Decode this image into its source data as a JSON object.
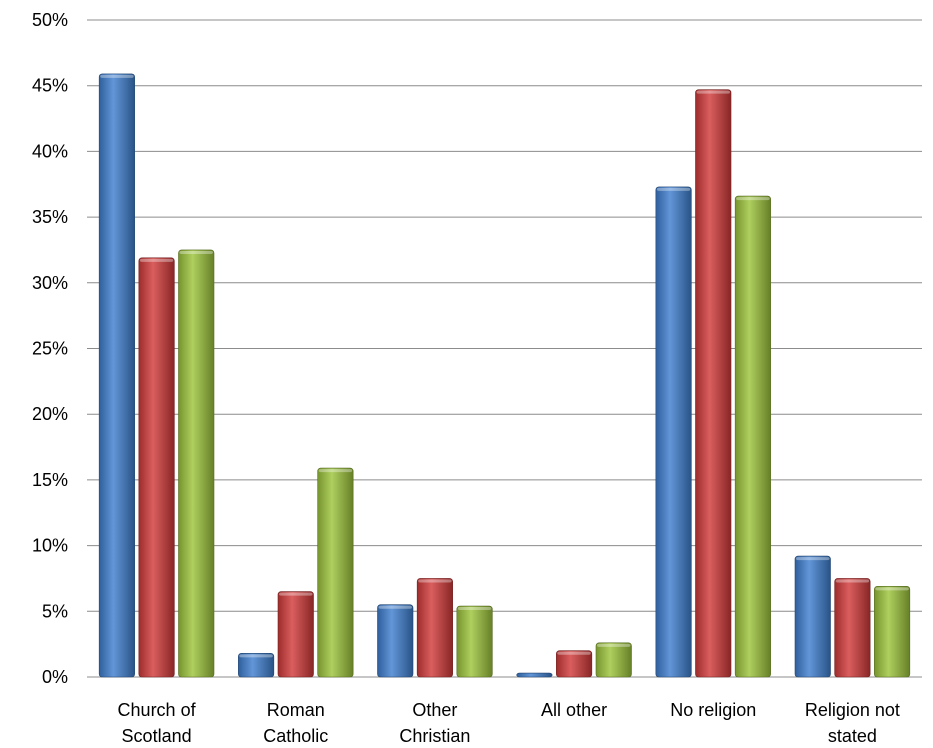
{
  "chart_data": {
    "type": "bar",
    "categories": [
      [
        "Church of",
        "Scotland"
      ],
      [
        "Roman",
        "Catholic"
      ],
      [
        "Other",
        "Christian"
      ],
      [
        "All other"
      ],
      [
        "No religion"
      ],
      [
        "Religion not",
        "stated"
      ]
    ],
    "series": [
      {
        "color": "#3f7fd0",
        "values": [
          45.9,
          1.8,
          5.5,
          0.3,
          37.3,
          9.2
        ]
      },
      {
        "color": "#d23b3b",
        "values": [
          31.9,
          6.5,
          7.5,
          2.0,
          44.7,
          7.5
        ]
      },
      {
        "color": "#9dc53c",
        "values": [
          32.5,
          15.9,
          5.4,
          2.6,
          36.6,
          6.9
        ]
      }
    ],
    "yticks": [
      "0%",
      "5%",
      "10%",
      "15%",
      "20%",
      "25%",
      "30%",
      "35%",
      "40%",
      "45%",
      "50%"
    ],
    "ylim": [
      0,
      50
    ],
    "grid": true,
    "legend": "none"
  }
}
